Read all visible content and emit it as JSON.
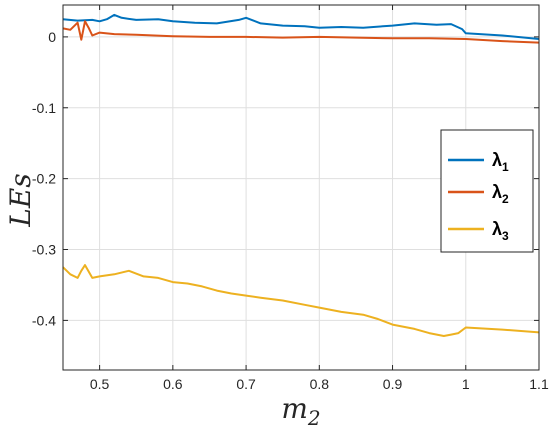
{
  "chart_data": {
    "type": "line",
    "xlabel": "m",
    "xlabel_sub": "2",
    "ylabel": "LEs",
    "xlim": [
      0.45,
      1.1
    ],
    "ylim": [
      -0.47,
      0.045
    ],
    "xticks": [
      "0.5",
      "0.6",
      "0.7",
      "0.8",
      "0.9",
      "1",
      "1.1"
    ],
    "yticks": [
      "0",
      "-0.1",
      "-0.2",
      "-0.3",
      "-0.4"
    ],
    "grid": true,
    "legend_position": "right",
    "series": [
      {
        "name": "λ",
        "sub": "1",
        "color": "#0072BD",
        "points": [
          [
            0.45,
            0.025
          ],
          [
            0.47,
            0.023
          ],
          [
            0.49,
            0.024
          ],
          [
            0.5,
            0.022
          ],
          [
            0.51,
            0.025
          ],
          [
            0.52,
            0.031
          ],
          [
            0.53,
            0.027
          ],
          [
            0.55,
            0.024
          ],
          [
            0.58,
            0.025
          ],
          [
            0.6,
            0.022
          ],
          [
            0.63,
            0.02
          ],
          [
            0.66,
            0.019
          ],
          [
            0.69,
            0.024
          ],
          [
            0.7,
            0.027
          ],
          [
            0.72,
            0.019
          ],
          [
            0.75,
            0.016
          ],
          [
            0.78,
            0.015
          ],
          [
            0.8,
            0.013
          ],
          [
            0.83,
            0.014
          ],
          [
            0.86,
            0.013
          ],
          [
            0.9,
            0.016
          ],
          [
            0.93,
            0.019
          ],
          [
            0.96,
            0.017
          ],
          [
            0.98,
            0.018
          ],
          [
            0.995,
            0.011
          ],
          [
            1.0,
            0.005
          ],
          [
            1.05,
            0.002
          ],
          [
            1.1,
            -0.003
          ]
        ]
      },
      {
        "name": "λ",
        "sub": "2",
        "color": "#D95319",
        "points": [
          [
            0.45,
            0.012
          ],
          [
            0.46,
            0.01
          ],
          [
            0.47,
            0.02
          ],
          [
            0.475,
            -0.004
          ],
          [
            0.48,
            0.022
          ],
          [
            0.485,
            0.013
          ],
          [
            0.49,
            0.002
          ],
          [
            0.5,
            0.006
          ],
          [
            0.52,
            0.004
          ],
          [
            0.55,
            0.003
          ],
          [
            0.6,
            0.001
          ],
          [
            0.65,
            0.0
          ],
          [
            0.7,
            0.0
          ],
          [
            0.75,
            -0.001
          ],
          [
            0.8,
            0.0
          ],
          [
            0.85,
            -0.001
          ],
          [
            0.9,
            -0.002
          ],
          [
            0.95,
            -0.002
          ],
          [
            1.0,
            -0.003
          ],
          [
            1.05,
            -0.006
          ],
          [
            1.1,
            -0.008
          ]
        ]
      },
      {
        "name": "λ",
        "sub": "3",
        "color": "#EDB120",
        "points": [
          [
            0.45,
            -0.325
          ],
          [
            0.46,
            -0.335
          ],
          [
            0.47,
            -0.34
          ],
          [
            0.475,
            -0.33
          ],
          [
            0.48,
            -0.322
          ],
          [
            0.49,
            -0.34
          ],
          [
            0.5,
            -0.338
          ],
          [
            0.52,
            -0.335
          ],
          [
            0.54,
            -0.33
          ],
          [
            0.56,
            -0.338
          ],
          [
            0.58,
            -0.34
          ],
          [
            0.6,
            -0.346
          ],
          [
            0.62,
            -0.348
          ],
          [
            0.64,
            -0.352
          ],
          [
            0.66,
            -0.358
          ],
          [
            0.68,
            -0.362
          ],
          [
            0.7,
            -0.365
          ],
          [
            0.72,
            -0.368
          ],
          [
            0.75,
            -0.372
          ],
          [
            0.78,
            -0.378
          ],
          [
            0.8,
            -0.382
          ],
          [
            0.83,
            -0.388
          ],
          [
            0.86,
            -0.392
          ],
          [
            0.88,
            -0.398
          ],
          [
            0.9,
            -0.406
          ],
          [
            0.93,
            -0.412
          ],
          [
            0.95,
            -0.418
          ],
          [
            0.97,
            -0.422
          ],
          [
            0.98,
            -0.42
          ],
          [
            0.99,
            -0.418
          ],
          [
            1.0,
            -0.41
          ],
          [
            1.05,
            -0.413
          ],
          [
            1.1,
            -0.417
          ]
        ]
      }
    ]
  }
}
